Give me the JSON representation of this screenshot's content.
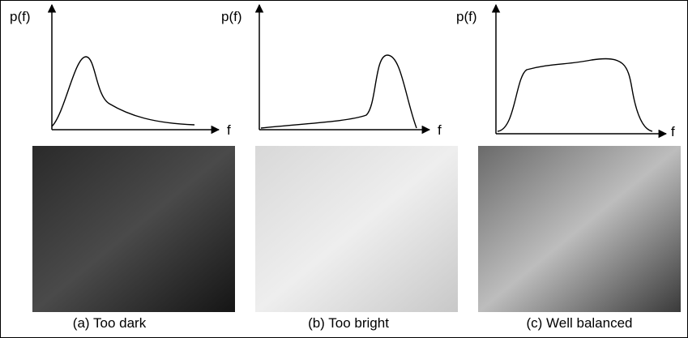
{
  "panels": [
    {
      "y_label": "p(f)",
      "x_label": "f",
      "caption": "(a) Too dark"
    },
    {
      "y_label": "p(f)",
      "x_label": "f",
      "caption": "(b) Too bright"
    },
    {
      "y_label": "p(f)",
      "x_label": "f",
      "caption": "(c) Well balanced"
    }
  ]
}
